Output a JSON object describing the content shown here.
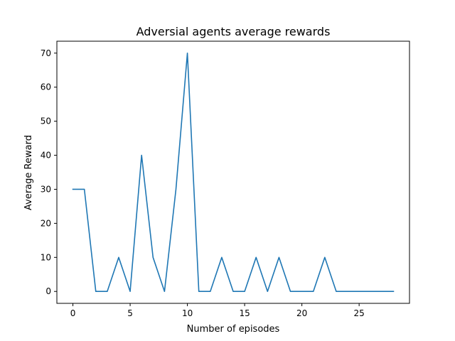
{
  "chart_data": {
    "type": "line",
    "title": "Adversial agents average rewards",
    "xlabel": "Number of episodes",
    "ylabel": "Average Reward",
    "xlim": [
      -1.4,
      29.4
    ],
    "ylim": [
      -3.5,
      73.5
    ],
    "xticks": [
      0,
      5,
      10,
      15,
      20,
      25
    ],
    "yticks": [
      0,
      10,
      20,
      30,
      40,
      50,
      60,
      70
    ],
    "xtick_labels": [
      "0",
      "5",
      "10",
      "15",
      "20",
      "25"
    ],
    "ytick_labels": [
      "0",
      "10",
      "20",
      "30",
      "40",
      "50",
      "60",
      "70"
    ],
    "grid": false,
    "series": [
      {
        "color": "#1f77b4",
        "x": [
          0,
          1,
          2,
          3,
          4,
          5,
          6,
          7,
          8,
          9,
          10,
          11,
          12,
          13,
          14,
          15,
          16,
          17,
          18,
          19,
          20,
          21,
          22,
          23,
          24,
          25,
          26,
          27,
          28
        ],
        "y": [
          30,
          30,
          0,
          0,
          10,
          0,
          40,
          10,
          0,
          30,
          70,
          0,
          0,
          10,
          0,
          0,
          10,
          0,
          10,
          0,
          0,
          0,
          10,
          0,
          0,
          0,
          0,
          0,
          0
        ]
      }
    ]
  }
}
